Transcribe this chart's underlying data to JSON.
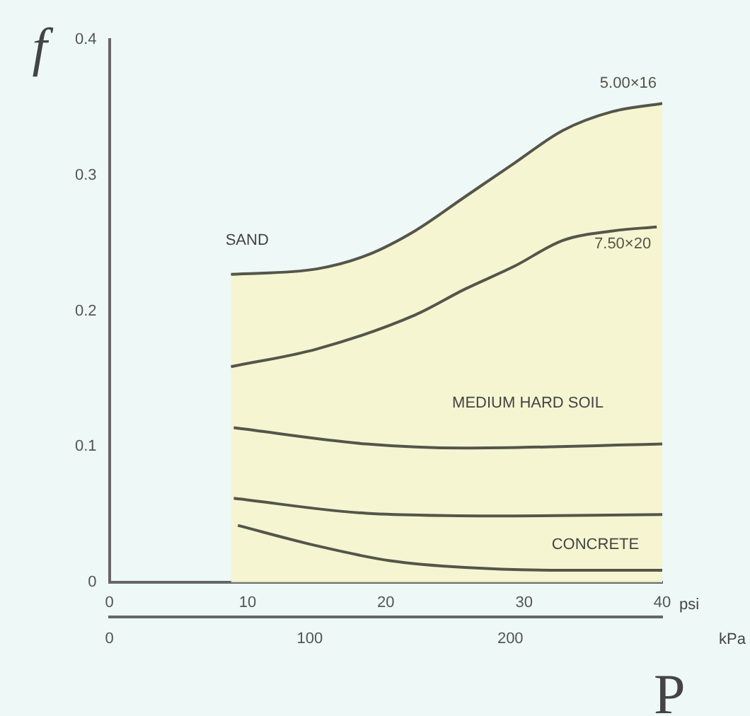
{
  "chart_data": {
    "type": "line",
    "ylabel": "f",
    "xlabel": "psi",
    "x2label": "kPa",
    "xlim": [
      0,
      40
    ],
    "xticks": [
      0,
      10,
      20,
      30,
      40
    ],
    "x2lim": [
      0,
      275.8
    ],
    "x2ticks": [
      0,
      100,
      200
    ],
    "ylim": [
      0,
      0.4
    ],
    "yticks": [
      0,
      0.1,
      0.2,
      0.3,
      0.4
    ],
    "grid": false,
    "legend": false,
    "marker": "none",
    "line_style": "solid",
    "series": [
      {
        "name": "5.00×16",
        "type": "area",
        "color": "#55554a",
        "x": [
          8.8,
          15,
          18.6,
          22.1,
          25.7,
          29.3,
          32.8,
          36.4,
          40
        ],
        "values": [
          0.227,
          0.231,
          0.241,
          0.259,
          0.284,
          0.309,
          0.333,
          0.347,
          0.353
        ]
      },
      {
        "name": "7.50×20",
        "color": "#55554a",
        "x": [
          8.8,
          15,
          22.1,
          25.7,
          29.3,
          32.8,
          36.4,
          39.6
        ],
        "values": [
          0.159,
          0.172,
          0.197,
          0.216,
          0.233,
          0.252,
          0.259,
          0.262
        ]
      },
      {
        "color": "#55554a",
        "x": [
          9,
          18.6,
          25.7,
          40
        ],
        "values": [
          0.114,
          0.102,
          0.099,
          0.102
        ]
      },
      {
        "color": "#55554a",
        "x": [
          9,
          18.6,
          29.3,
          40
        ],
        "values": [
          0.062,
          0.051,
          0.049,
          0.05
        ]
      },
      {
        "color": "#55554a",
        "x": [
          9.3,
          15,
          20.3,
          25.7,
          32.8,
          40
        ],
        "values": [
          0.042,
          0.027,
          0.016,
          0.011,
          0.009,
          0.009
        ]
      }
    ],
    "annotations": [
      "SAND",
      "MEDIUM HARD SOIL",
      "CONCRETE",
      "P"
    ]
  }
}
